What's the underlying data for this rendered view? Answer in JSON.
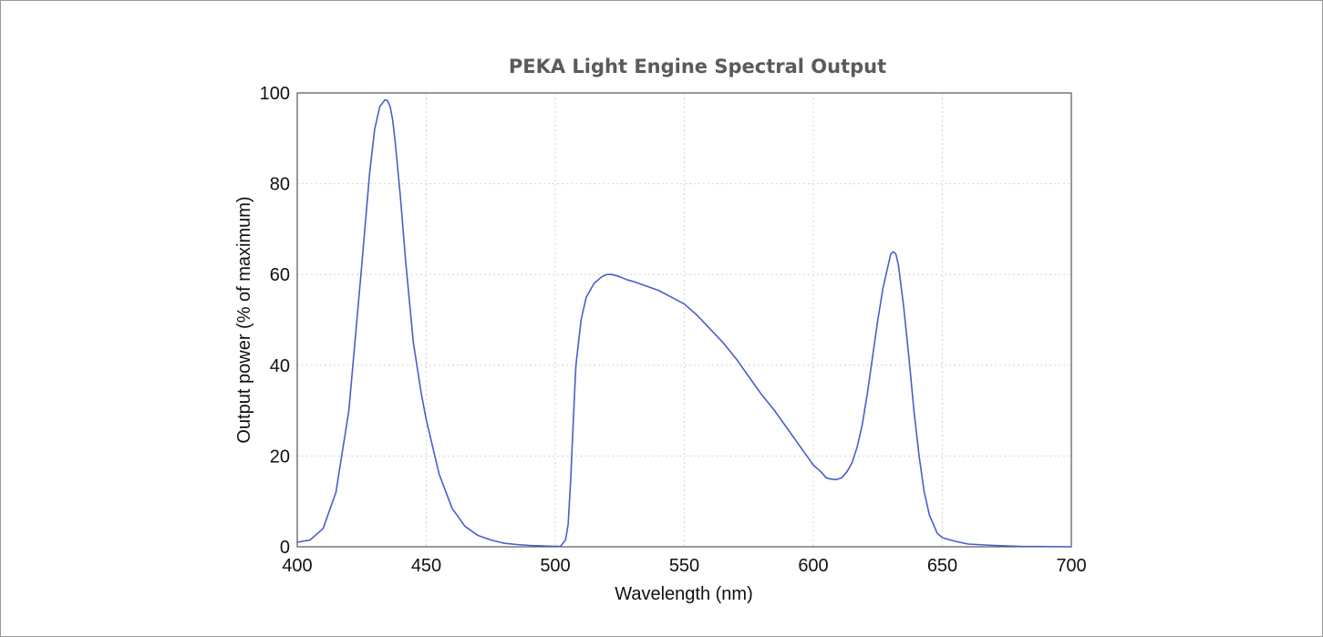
{
  "chart_data": {
    "type": "line",
    "title": "PEKA Light Engine Spectral Output",
    "xlabel": "Wavelength (nm)",
    "ylabel": "Output power (% of maximum)",
    "xlim": [
      400,
      700
    ],
    "ylim": [
      0,
      100
    ],
    "xticks": [
      400,
      450,
      500,
      550,
      600,
      650,
      700
    ],
    "yticks": [
      0,
      20,
      40,
      60,
      80,
      100
    ],
    "grid": true,
    "series_color": "#4a5fc7",
    "series": [
      {
        "x": [
          400,
          405,
          410,
          415,
          420,
          425,
          428,
          430,
          432,
          434,
          435,
          436,
          437,
          438,
          440,
          442,
          445,
          448,
          450,
          455,
          460,
          465,
          470,
          475,
          480,
          485,
          490,
          495,
          500,
          502,
          504,
          505,
          506,
          507,
          508,
          510,
          512,
          515,
          518,
          520,
          522,
          525,
          528,
          530,
          535,
          540,
          545,
          550,
          555,
          560,
          565,
          570,
          575,
          580,
          585,
          590,
          595,
          600,
          603,
          605,
          607,
          609,
          611,
          613,
          615,
          617,
          619,
          621,
          623,
          625,
          627,
          629,
          630,
          631,
          632,
          633,
          635,
          637,
          639,
          641,
          643,
          645,
          648,
          650,
          655,
          660,
          670,
          680,
          690,
          700
        ],
        "y": [
          1,
          1.5,
          4,
          12,
          30,
          62,
          82,
          92,
          97,
          98.5,
          98.3,
          97,
          94,
          89,
          77,
          63,
          45,
          34,
          28,
          16,
          8.5,
          4.5,
          2.5,
          1.5,
          0.8,
          0.5,
          0.3,
          0.2,
          0.1,
          0.1,
          1.5,
          5,
          15,
          28,
          40,
          50,
          55,
          58,
          59.5,
          60,
          60,
          59.5,
          58.8,
          58.5,
          57.5,
          56.5,
          55,
          53.5,
          51,
          48,
          45,
          41.5,
          37.5,
          33.5,
          30,
          26,
          22,
          18,
          16.5,
          15.2,
          14.9,
          14.8,
          15.2,
          16.5,
          18.5,
          22,
          27,
          34,
          42,
          50,
          57,
          62,
          64.5,
          65,
          64.5,
          62,
          53,
          42,
          30,
          20,
          12,
          7,
          3,
          2,
          1.2,
          0.6,
          0.3,
          0.1,
          0.05,
          0
        ]
      }
    ]
  }
}
